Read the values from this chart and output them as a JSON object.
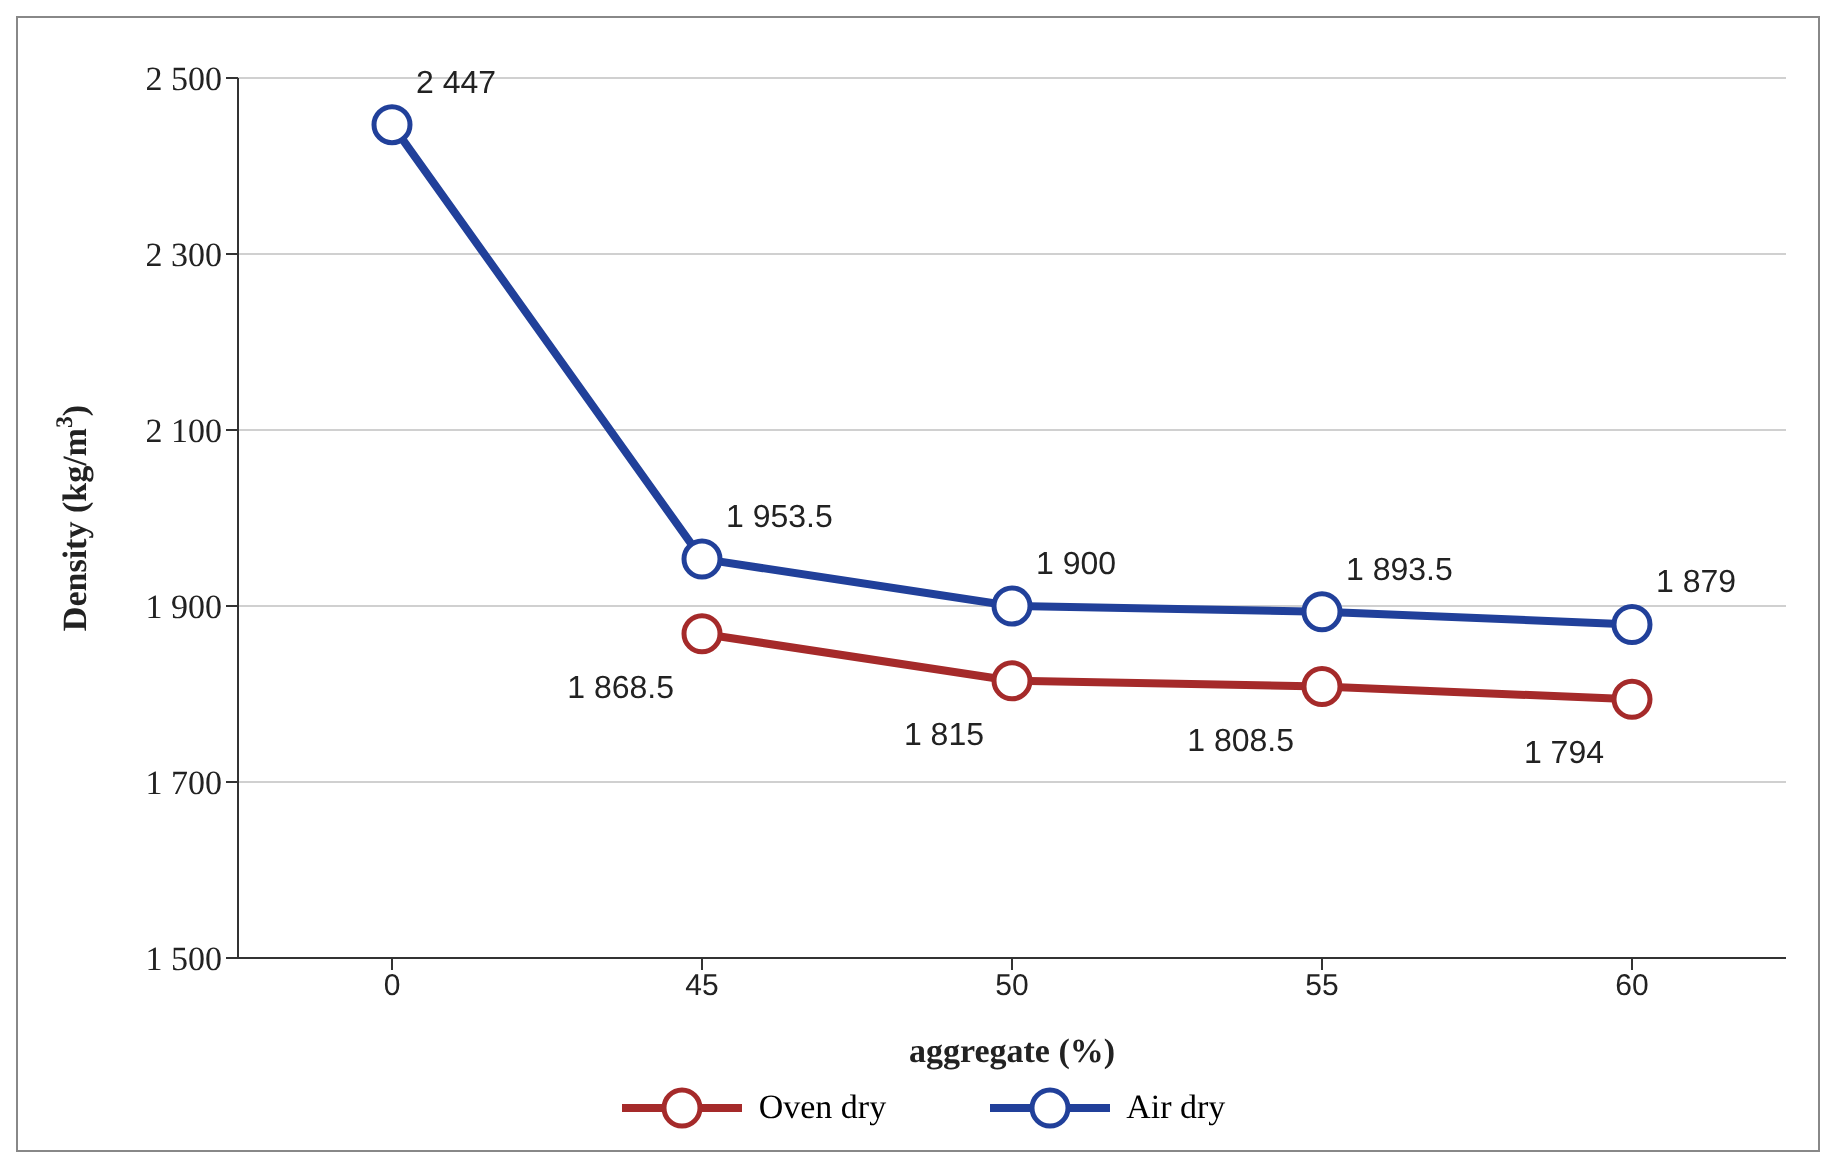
{
  "chart_data": {
    "type": "line",
    "xlabel": "aggregate (%)",
    "ylabel": "Density (kg/m$^{3}$)",
    "categories": [
      "0",
      "45",
      "50",
      "55",
      "60"
    ],
    "series": [
      {
        "name": "Oven dry",
        "color": "#a52a2a",
        "values": [
          null,
          1868.5,
          1815,
          1808.5,
          1794
        ],
        "value_labels": [
          null,
          "1 868.5",
          "1 815",
          "1 808.5",
          "1 794"
        ]
      },
      {
        "name": "Air dry",
        "color": "#21409a",
        "values": [
          2447,
          1953.5,
          1900,
          1893.5,
          1879
        ],
        "value_labels": [
          "2 447",
          "1 953.5",
          "1 900",
          "1 893.5",
          "1 879"
        ]
      }
    ],
    "ylim": [
      1500,
      2500
    ],
    "yticks": [
      {
        "value": 1500,
        "label": "1 500"
      },
      {
        "value": 1700,
        "label": "1 700"
      },
      {
        "value": 1900,
        "label": "1 900"
      },
      {
        "value": 2100,
        "label": "2 100"
      },
      {
        "value": 2300,
        "label": "2 300"
      },
      {
        "value": 2500,
        "label": "2 500"
      }
    ],
    "grid": "y",
    "legend": "bottom",
    "marker": "circle",
    "line_style": "solid"
  }
}
